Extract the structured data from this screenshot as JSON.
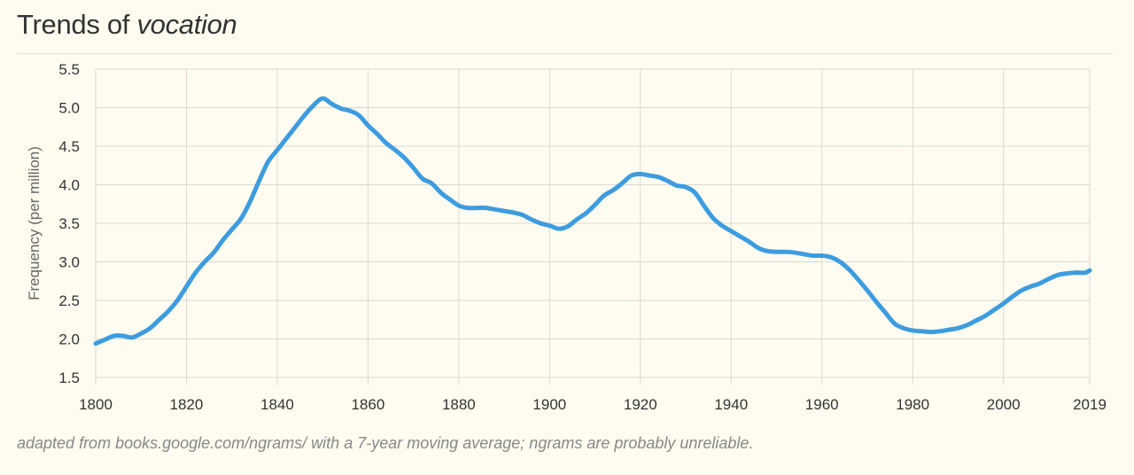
{
  "header": {
    "title_prefix": "Trends of",
    "title_word": "vocation"
  },
  "caption": "adapted from books.google.com/ngrams/ with a 7-year moving average; ngrams are probably unreliable.",
  "colors": {
    "line": "#3d9ce0",
    "grid": "#d9d9d2",
    "background": "#fefcf0"
  },
  "chart_data": {
    "type": "line",
    "title": "Trends of vocation",
    "ylabel": "Frequency (per million)",
    "xlabel": "",
    "xlim": [
      1800,
      2019
    ],
    "ylim": [
      1.5,
      5.5
    ],
    "x_ticks": [
      1800,
      1820,
      1840,
      1860,
      1880,
      1900,
      1920,
      1940,
      1960,
      1980,
      2000,
      2019
    ],
    "y_ticks": [
      "1.5",
      "2.0",
      "2.5",
      "3.0",
      "3.5",
      "4.0",
      "4.5",
      "5.0",
      "5.5"
    ],
    "grid": true,
    "series": [
      {
        "x": [
          1800,
          1802,
          1804,
          1806,
          1808,
          1810,
          1812,
          1814,
          1816,
          1818,
          1820,
          1822,
          1824,
          1826,
          1828,
          1830,
          1832,
          1834,
          1836,
          1838,
          1840,
          1842,
          1844,
          1846,
          1848,
          1850,
          1852,
          1854,
          1856,
          1858,
          1860,
          1862,
          1864,
          1866,
          1868,
          1870,
          1872,
          1874,
          1876,
          1878,
          1880,
          1882,
          1884,
          1886,
          1888,
          1890,
          1892,
          1894,
          1896,
          1898,
          1900,
          1902,
          1904,
          1906,
          1908,
          1910,
          1912,
          1914,
          1916,
          1918,
          1920,
          1922,
          1924,
          1926,
          1928,
          1930,
          1932,
          1934,
          1936,
          1938,
          1940,
          1942,
          1944,
          1946,
          1948,
          1950,
          1952,
          1954,
          1956,
          1958,
          1960,
          1962,
          1964,
          1966,
          1968,
          1970,
          1972,
          1974,
          1976,
          1978,
          1980,
          1982,
          1984,
          1986,
          1988,
          1990,
          1992,
          1994,
          1996,
          1998,
          2000,
          2002,
          2004,
          2006,
          2008,
          2010,
          2012,
          2014,
          2016,
          2018,
          2019
        ],
        "values": [
          1.94,
          1.99,
          2.04,
          2.04,
          2.02,
          2.07,
          2.14,
          2.25,
          2.36,
          2.5,
          2.68,
          2.86,
          3.0,
          3.12,
          3.28,
          3.42,
          3.56,
          3.78,
          4.05,
          4.3,
          4.45,
          4.6,
          4.75,
          4.9,
          5.03,
          5.12,
          5.05,
          4.99,
          4.96,
          4.9,
          4.77,
          4.66,
          4.54,
          4.45,
          4.35,
          4.22,
          4.08,
          4.02,
          3.9,
          3.81,
          3.73,
          3.7,
          3.7,
          3.7,
          3.68,
          3.66,
          3.64,
          3.61,
          3.55,
          3.5,
          3.47,
          3.43,
          3.46,
          3.55,
          3.63,
          3.74,
          3.86,
          3.93,
          4.02,
          4.12,
          4.14,
          4.12,
          4.1,
          4.05,
          3.99,
          3.97,
          3.9,
          3.73,
          3.57,
          3.47,
          3.4,
          3.33,
          3.26,
          3.18,
          3.14,
          3.13,
          3.13,
          3.12,
          3.1,
          3.08,
          3.08,
          3.06,
          3.0,
          2.9,
          2.77,
          2.63,
          2.48,
          2.34,
          2.2,
          2.14,
          2.11,
          2.1,
          2.09,
          2.1,
          2.12,
          2.14,
          2.18,
          2.24,
          2.3,
          2.38,
          2.46,
          2.55,
          2.63,
          2.68,
          2.72,
          2.78,
          2.83,
          2.85,
          2.86,
          2.86,
          2.89
        ]
      }
    ]
  }
}
